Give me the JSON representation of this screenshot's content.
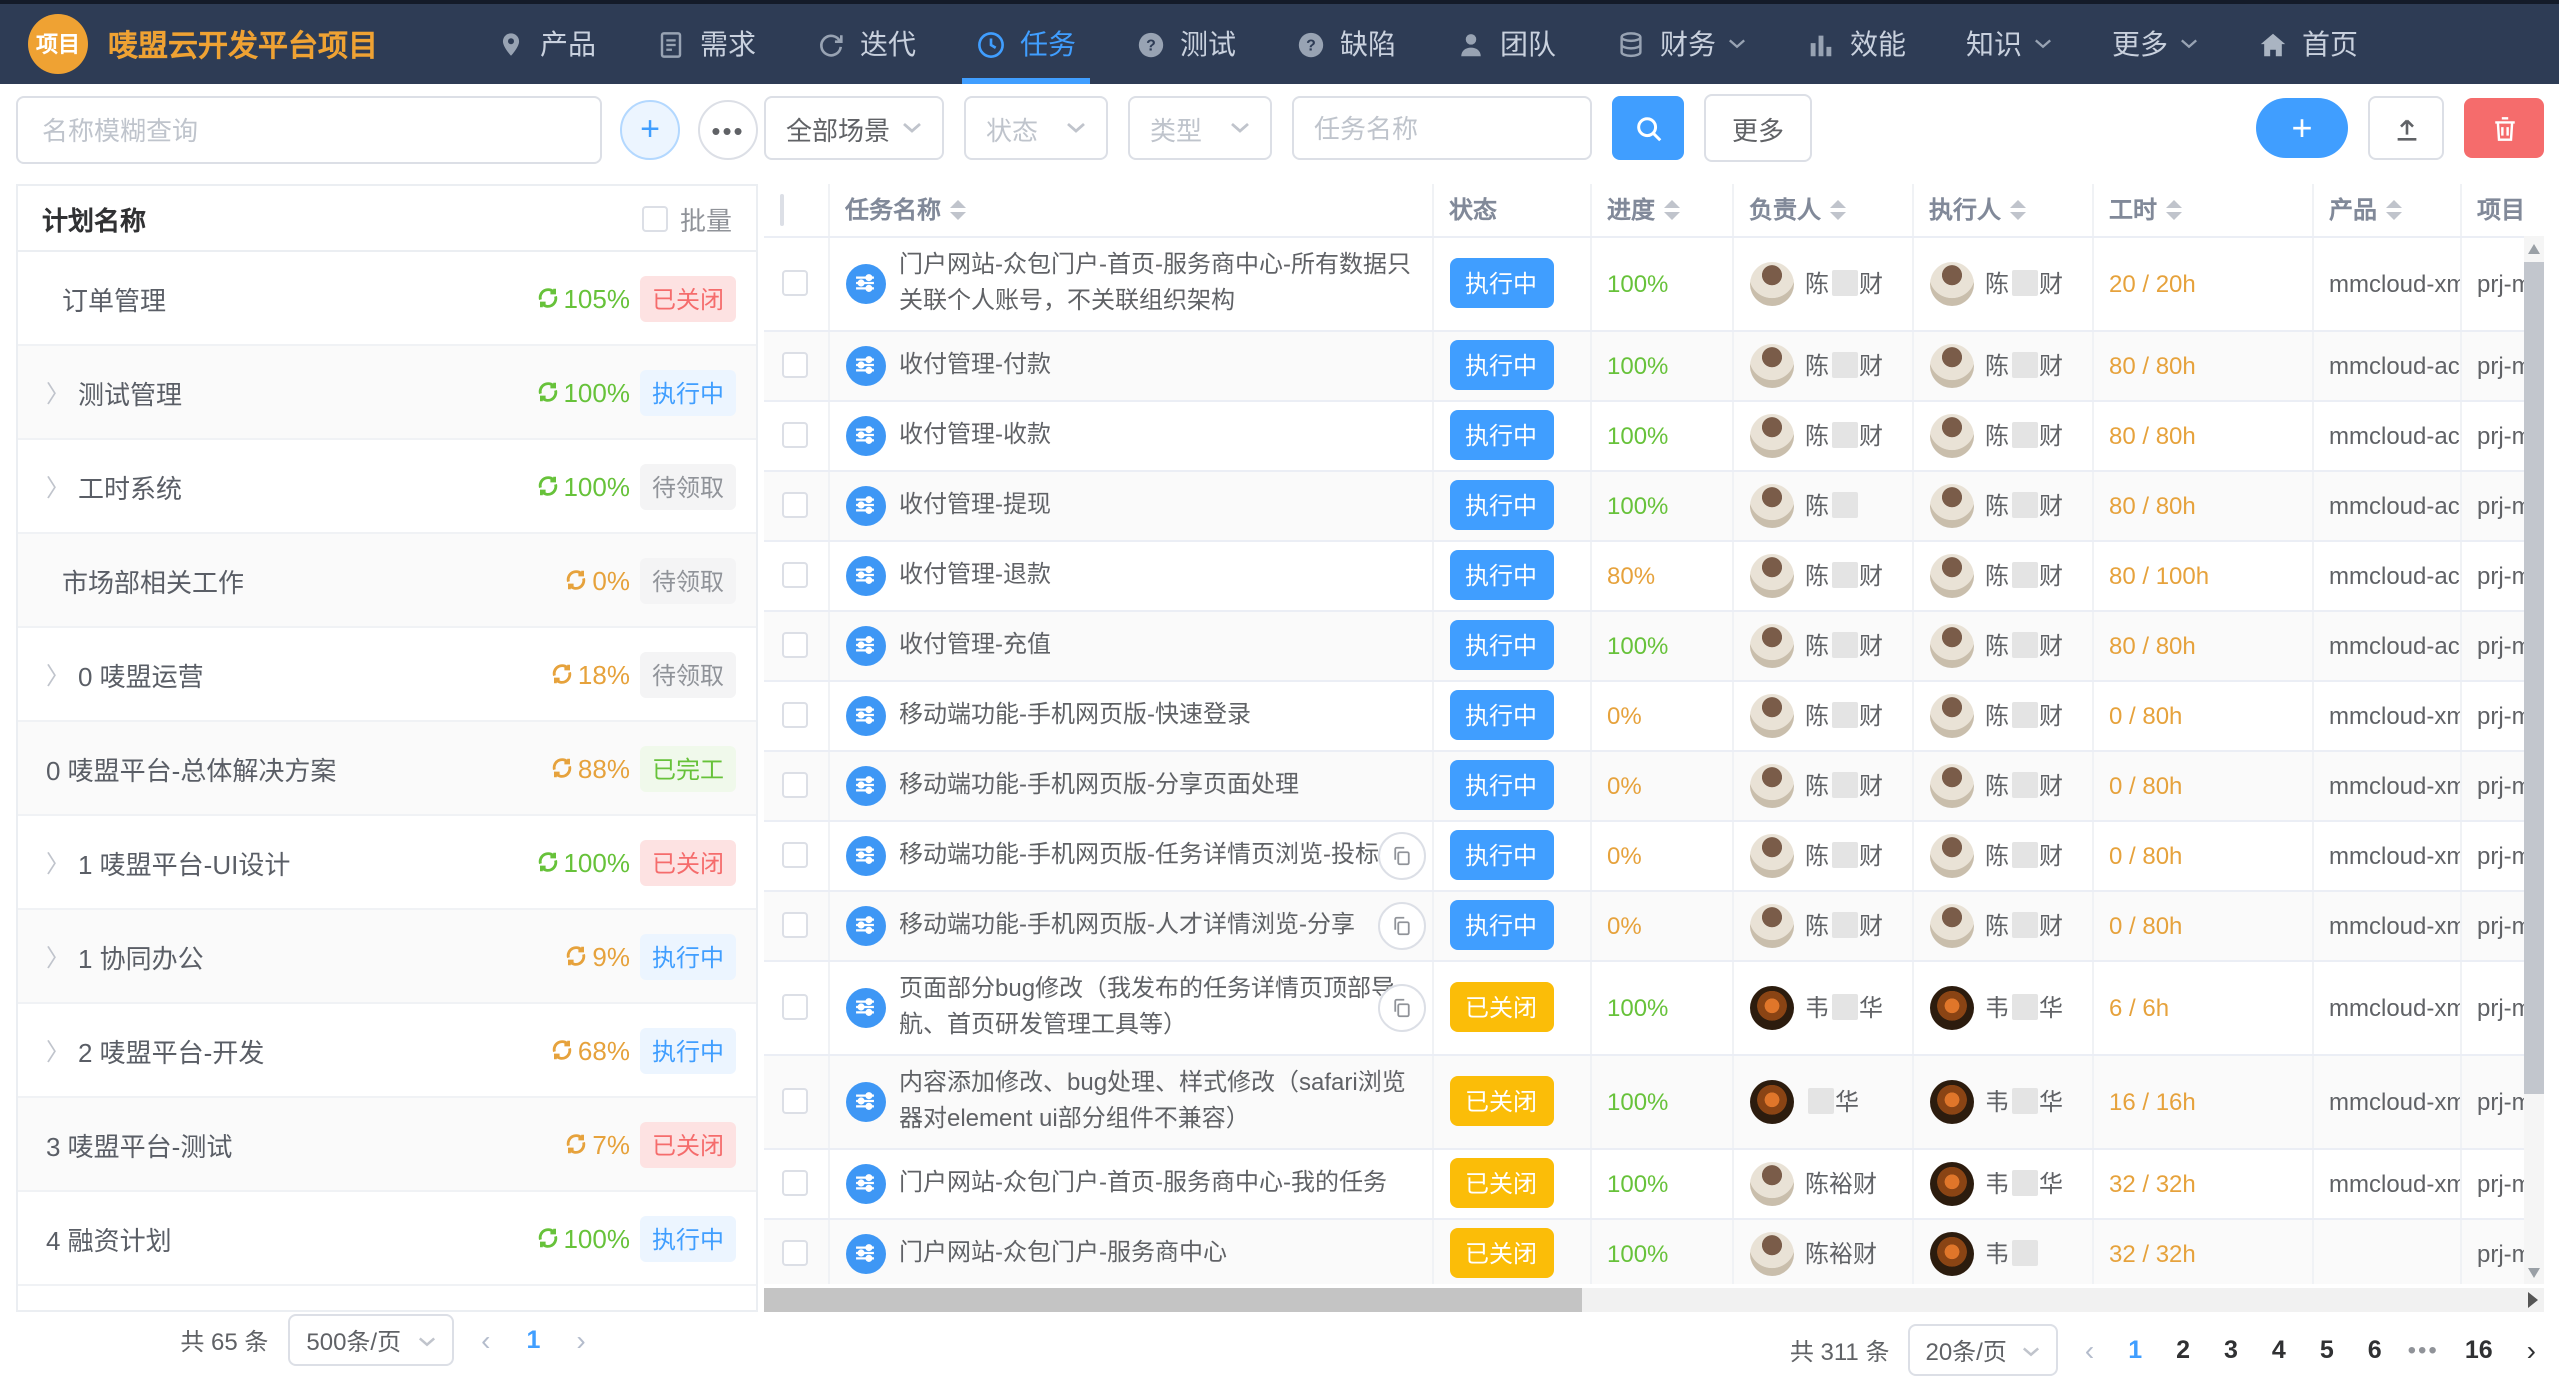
{
  "navbar": {
    "logo_text": "项目",
    "title": "唛盟云开发平台项目",
    "items": [
      {
        "label": "产品",
        "icon": "location-icon"
      },
      {
        "label": "需求",
        "icon": "document-icon"
      },
      {
        "label": "迭代",
        "icon": "iteration-icon"
      },
      {
        "label": "任务",
        "icon": "clock-icon",
        "active": true
      },
      {
        "label": "测试",
        "icon": "question-icon"
      },
      {
        "label": "缺陷",
        "icon": "question-icon"
      },
      {
        "label": "团队",
        "icon": "person-icon"
      },
      {
        "label": "财务",
        "icon": "database-icon",
        "dropdown": true
      },
      {
        "label": "效能",
        "icon": "bar-chart-icon"
      },
      {
        "label": "知识",
        "dropdown": true
      },
      {
        "label": "更多",
        "dropdown": true
      },
      {
        "label": "首页",
        "icon": "home-icon"
      }
    ]
  },
  "left_panel": {
    "search_placeholder": "名称模糊查询",
    "list_header": {
      "title": "计划名称",
      "batch_label": "批量"
    },
    "plans": [
      {
        "name": "订单管理",
        "arrow": false,
        "indent": 1,
        "percent": "105%",
        "trend": "green",
        "status": "已关闭",
        "status_type": "closed"
      },
      {
        "name": "测试管理",
        "arrow": true,
        "percent": "100%",
        "trend": "green",
        "status": "执行中",
        "status_type": "running"
      },
      {
        "name": "工时系统",
        "arrow": true,
        "percent": "100%",
        "trend": "green",
        "status": "待领取",
        "status_type": "pending"
      },
      {
        "name": "市场部相关工作",
        "arrow": false,
        "indent": 1,
        "percent": "0%",
        "trend": "orange",
        "status": "待领取",
        "status_type": "pending"
      },
      {
        "name": "0 唛盟运营",
        "arrow": true,
        "percent": "18%",
        "trend": "orange",
        "status": "待领取",
        "status_type": "pending"
      },
      {
        "name": "0 唛盟平台-总体解决方案",
        "arrow": false,
        "indent": 0,
        "percent": "88%",
        "trend": "orange",
        "status": "已完工",
        "status_type": "done"
      },
      {
        "name": "1 唛盟平台-UI设计",
        "arrow": true,
        "percent": "100%",
        "trend": "green",
        "status": "已关闭",
        "status_type": "closed"
      },
      {
        "name": "1 协同办公",
        "arrow": true,
        "percent": "9%",
        "trend": "orange",
        "status": "执行中",
        "status_type": "running"
      },
      {
        "name": "2 唛盟平台-开发",
        "arrow": true,
        "percent": "68%",
        "trend": "orange",
        "status": "执行中",
        "status_type": "running"
      },
      {
        "name": "3 唛盟平台-测试",
        "arrow": false,
        "indent": 0,
        "percent": "7%",
        "trend": "orange",
        "status": "已关闭",
        "status_type": "closed"
      },
      {
        "name": "4 融资计划",
        "arrow": false,
        "indent": 0,
        "percent": "100%",
        "trend": "green",
        "status": "执行中",
        "status_type": "running"
      }
    ],
    "pagination": {
      "total": "共 65 条",
      "page_size": "500条/页",
      "pages": [
        "1"
      ],
      "current": "1"
    }
  },
  "toolbar": {
    "scene_value": "全部场景",
    "status_placeholder": "状态",
    "type_placeholder": "类型",
    "task_placeholder": "任务名称",
    "more_label": "更多"
  },
  "table": {
    "columns": [
      {
        "label": "任务名称",
        "sortable": true
      },
      {
        "label": "状态",
        "sortable": false
      },
      {
        "label": "进度",
        "sortable": true
      },
      {
        "label": "负责人",
        "sortable": true
      },
      {
        "label": "执行人",
        "sortable": true
      },
      {
        "label": "工时",
        "sortable": true
      },
      {
        "label": "产品",
        "sortable": true
      },
      {
        "label": "项目",
        "sortable": true
      }
    ],
    "rows": [
      {
        "name": "门户网站-众包门户-首页-服务商中心-所有数据只关联个人账号，不关联组织架构",
        "lines": 2,
        "copy": false,
        "status": "执行中",
        "status_type": "running",
        "progress": "100%",
        "progress_color": "green",
        "owner": {
          "avatar": "chen",
          "pre": "陈",
          "suf": "财",
          "masked": true
        },
        "executor": {
          "avatar": "chen",
          "pre": "陈",
          "suf": "财",
          "masked": true
        },
        "hours": "20 / 20h",
        "product": "mmcloud-xm",
        "project": "prj-m"
      },
      {
        "name": "收付管理-付款",
        "lines": 1,
        "copy": false,
        "status": "执行中",
        "status_type": "running",
        "progress": "100%",
        "progress_color": "green",
        "owner": {
          "avatar": "chen",
          "pre": "陈",
          "suf": "财",
          "masked": true
        },
        "executor": {
          "avatar": "chen",
          "pre": "陈",
          "suf": "财",
          "masked": true
        },
        "hours": "80 / 80h",
        "product": "mmcloud-ac",
        "project": "prj-m"
      },
      {
        "name": "收付管理-收款",
        "lines": 1,
        "copy": false,
        "status": "执行中",
        "status_type": "running",
        "progress": "100%",
        "progress_color": "green",
        "owner": {
          "avatar": "chen",
          "pre": "陈",
          "suf": "财",
          "masked": true
        },
        "executor": {
          "avatar": "chen",
          "pre": "陈",
          "suf": "财",
          "masked": true
        },
        "hours": "80 / 80h",
        "product": "mmcloud-ac",
        "project": "prj-m"
      },
      {
        "name": "收付管理-提现",
        "lines": 1,
        "copy": false,
        "status": "执行中",
        "status_type": "running",
        "progress": "100%",
        "progress_color": "green",
        "owner": {
          "avatar": "chen",
          "pre": "陈",
          "suf": "",
          "masked": true
        },
        "executor": {
          "avatar": "chen",
          "pre": "陈",
          "suf": "财",
          "masked": true
        },
        "hours": "80 / 80h",
        "product": "mmcloud-ac",
        "project": "prj-m"
      },
      {
        "name": "收付管理-退款",
        "lines": 1,
        "copy": false,
        "status": "执行中",
        "status_type": "running",
        "progress": "80%",
        "progress_color": "orange",
        "owner": {
          "avatar": "chen",
          "pre": "陈",
          "suf": "财",
          "masked": true
        },
        "executor": {
          "avatar": "chen",
          "pre": "陈",
          "suf": "财",
          "masked": true
        },
        "hours": "80 / 100h",
        "product": "mmcloud-ac",
        "project": "prj-m"
      },
      {
        "name": "收付管理-充值",
        "lines": 1,
        "copy": false,
        "status": "执行中",
        "status_type": "running",
        "progress": "100%",
        "progress_color": "green",
        "owner": {
          "avatar": "chen",
          "pre": "陈",
          "suf": "财",
          "masked": true
        },
        "executor": {
          "avatar": "chen",
          "pre": "陈",
          "suf": "财",
          "masked": true
        },
        "hours": "80 / 80h",
        "product": "mmcloud-ac",
        "project": "prj-m"
      },
      {
        "name": "移动端功能-手机网页版-快速登录",
        "lines": 1,
        "copy": false,
        "status": "执行中",
        "status_type": "running",
        "progress": "0%",
        "progress_color": "orange",
        "owner": {
          "avatar": "chen",
          "pre": "陈",
          "suf": "财",
          "masked": true
        },
        "executor": {
          "avatar": "chen",
          "pre": "陈",
          "suf": "财",
          "masked": true
        },
        "hours": "0 / 80h",
        "product": "mmcloud-xm",
        "project": "prj-m"
      },
      {
        "name": "移动端功能-手机网页版-分享页面处理",
        "lines": 1,
        "copy": false,
        "status": "执行中",
        "status_type": "running",
        "progress": "0%",
        "progress_color": "orange",
        "owner": {
          "avatar": "chen",
          "pre": "陈",
          "suf": "财",
          "masked": true
        },
        "executor": {
          "avatar": "chen",
          "pre": "陈",
          "suf": "财",
          "masked": true
        },
        "hours": "0 / 80h",
        "product": "mmcloud-xm",
        "project": "prj-m"
      },
      {
        "name": "移动端功能-手机网页版-任务详情页浏览-投标-分享",
        "lines": 1,
        "copy": true,
        "status": "执行中",
        "status_type": "running",
        "progress": "0%",
        "progress_color": "orange",
        "owner": {
          "avatar": "chen",
          "pre": "陈",
          "suf": "财",
          "masked": true
        },
        "executor": {
          "avatar": "chen",
          "pre": "陈",
          "suf": "财",
          "masked": true
        },
        "hours": "0 / 80h",
        "product": "mmcloud-xm",
        "project": "prj-m"
      },
      {
        "name": "移动端功能-手机网页版-人才详情浏览-分享",
        "lines": 1,
        "copy": true,
        "status": "执行中",
        "status_type": "running",
        "progress": "0%",
        "progress_color": "orange",
        "owner": {
          "avatar": "chen",
          "pre": "陈",
          "suf": "财",
          "masked": true
        },
        "executor": {
          "avatar": "chen",
          "pre": "陈",
          "suf": "财",
          "masked": true
        },
        "hours": "0 / 80h",
        "product": "mmcloud-xm",
        "project": "prj-m"
      },
      {
        "name": "页面部分bug修改（我发布的任务详情页顶部导航、首页研发管理工具等）",
        "lines": 2,
        "copy": true,
        "status": "已关闭",
        "status_type": "closed",
        "progress": "100%",
        "progress_color": "green",
        "owner": {
          "avatar": "wei",
          "pre": "韦",
          "suf": "华",
          "masked": true
        },
        "executor": {
          "avatar": "wei",
          "pre": "韦",
          "suf": "华",
          "masked": true
        },
        "hours": "6 / 6h",
        "product": "mmcloud-xm",
        "project": "prj-m"
      },
      {
        "name": "内容添加修改、bug处理、样式修改（safari浏览器对element ui部分组件不兼容）",
        "lines": 2,
        "copy": false,
        "status": "已关闭",
        "status_type": "closed",
        "progress": "100%",
        "progress_color": "green",
        "owner": {
          "avatar": "wei",
          "pre": "",
          "suf": "华",
          "masked": true
        },
        "executor": {
          "avatar": "wei",
          "pre": "韦",
          "suf": "华",
          "masked": true
        },
        "hours": "16 / 16h",
        "product": "mmcloud-xm",
        "project": "prj-m"
      },
      {
        "name": "门户网站-众包门户-首页-服务商中心-我的任务",
        "lines": 1,
        "copy": false,
        "status": "已关闭",
        "status_type": "closed",
        "progress": "100%",
        "progress_color": "green",
        "owner": {
          "avatar": "chen",
          "name": "陈裕财"
        },
        "executor": {
          "avatar": "wei",
          "pre": "韦",
          "suf": "华",
          "masked": true
        },
        "hours": "32 / 32h",
        "product": "mmcloud-xm",
        "project": "prj-m"
      },
      {
        "name": "门户网站-众包门户-服务商中心",
        "lines": 1,
        "copy": false,
        "status": "已关闭",
        "status_type": "closed",
        "progress": "100%",
        "progress_color": "green",
        "owner": {
          "avatar": "chen",
          "name": "陈裕财"
        },
        "executor": {
          "avatar": "wei",
          "pre": "韦",
          "suf": "",
          "masked": true
        },
        "hours": "32 / 32h",
        "product": "",
        "project": "prj-m"
      }
    ],
    "pagination": {
      "total": "共 311 条",
      "page_size": "20条/页",
      "pages": [
        "1",
        "2",
        "3",
        "4",
        "5",
        "6",
        "•••",
        "16"
      ],
      "current": "1"
    }
  }
}
